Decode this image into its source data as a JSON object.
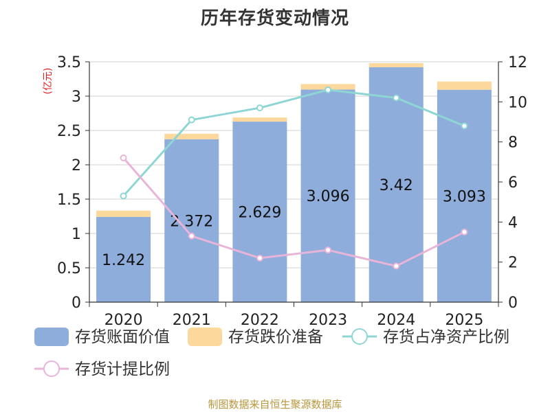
{
  "chart_data": {
    "type": "bar",
    "title": "历年存货变动情况",
    "categories": [
      "2020",
      "2021",
      "2022",
      "2023",
      "2024",
      "2025"
    ],
    "ylabel": "(亿元)",
    "ylim": [
      0,
      3.5
    ],
    "y_ticks": [
      "0",
      "0.5",
      "1",
      "1.5",
      "2",
      "2.5",
      "3",
      "3.5"
    ],
    "y2label": "",
    "y2lim": [
      0,
      12
    ],
    "y2_ticks": [
      "0",
      "2",
      "4",
      "6",
      "8",
      "10",
      "12"
    ],
    "grid": true,
    "legend_position": "bottom",
    "series": [
      {
        "name": "存货账面价值",
        "kind": "bar",
        "stack": "inv",
        "axis": "left",
        "color": "#8eaddb",
        "values": [
          1.242,
          2.372,
          2.629,
          3.096,
          3.42,
          3.093
        ],
        "labels": [
          "1.242",
          "2.372",
          "2.629",
          "3.096",
          "3.42",
          "3.093"
        ]
      },
      {
        "name": "存货跌价准备",
        "kind": "bar",
        "stack": "inv",
        "axis": "left",
        "color": "#fdd89c",
        "values": [
          0.09,
          0.08,
          0.06,
          0.08,
          0.06,
          0.12
        ]
      },
      {
        "name": "存货占净资产比例",
        "kind": "line",
        "axis": "right",
        "color": "#8ed6d4",
        "values": [
          5.3,
          9.1,
          9.7,
          10.6,
          10.2,
          8.8
        ]
      },
      {
        "name": "存货计提比例",
        "kind": "line",
        "axis": "right",
        "color": "#e8b4d8",
        "values": [
          7.2,
          3.3,
          2.2,
          2.6,
          1.8,
          3.5
        ]
      }
    ]
  },
  "footer": {
    "source": "制图数据来自恒生聚源数据库"
  }
}
